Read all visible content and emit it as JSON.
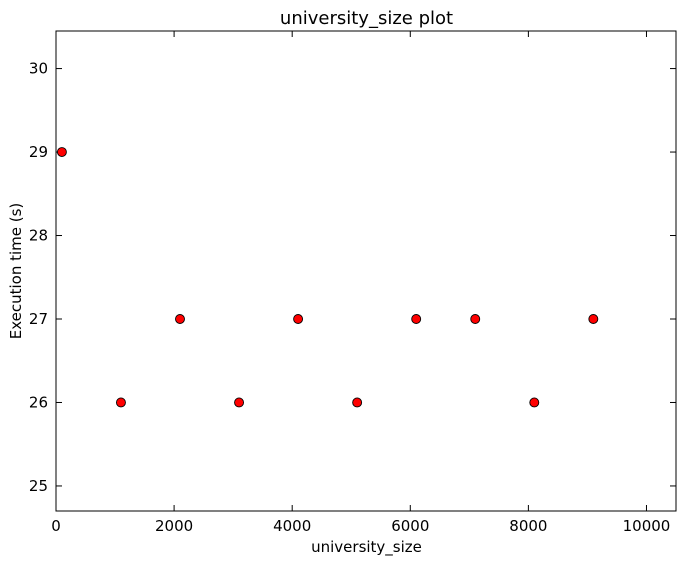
{
  "chart_data": {
    "type": "scatter",
    "title": "university_size plot",
    "xlabel": "university_size",
    "ylabel": "Execution time (s)",
    "xlim": [
      0,
      10500
    ],
    "ylim": [
      24.7,
      30.45
    ],
    "xticks": [
      0,
      2000,
      4000,
      6000,
      8000,
      10000
    ],
    "xtick_labels": [
      "0",
      "2000",
      "4000",
      "6000",
      "8000",
      "10000"
    ],
    "yticks": [
      25,
      26,
      27,
      28,
      29,
      30
    ],
    "ytick_labels": [
      "25",
      "26",
      "27",
      "28",
      "29",
      "30"
    ],
    "grid": false,
    "marker_color": "#ff0000",
    "marker_edge_color": "#000000",
    "points": [
      {
        "x": 100,
        "y": 29
      },
      {
        "x": 1100,
        "y": 26
      },
      {
        "x": 2100,
        "y": 27
      },
      {
        "x": 3100,
        "y": 26
      },
      {
        "x": 4100,
        "y": 27
      },
      {
        "x": 5100,
        "y": 26
      },
      {
        "x": 6100,
        "y": 27
      },
      {
        "x": 7100,
        "y": 27
      },
      {
        "x": 8100,
        "y": 26
      },
      {
        "x": 9100,
        "y": 27
      }
    ]
  }
}
